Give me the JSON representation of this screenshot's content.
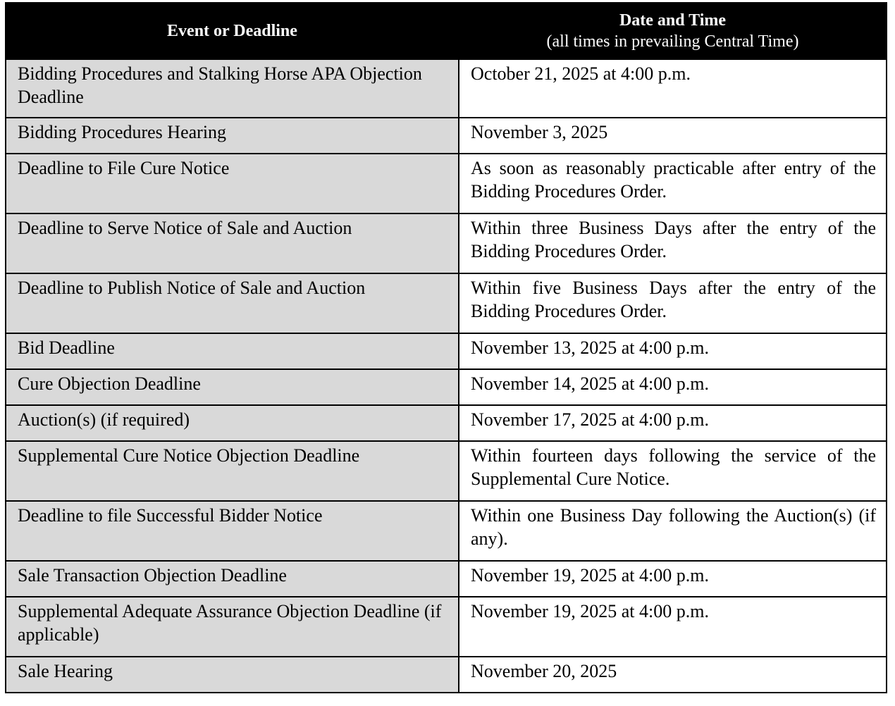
{
  "header": {
    "event": "Event or Deadline",
    "date": "Date and Time",
    "date_sub": "(all times in prevailing Central Time)"
  },
  "colors": {
    "header_bg": "#000000",
    "event_bg": "#d9d9d9"
  },
  "rows": [
    {
      "event": "Bidding Procedures and Stalking Horse APA Objection Deadline",
      "date": "October 21, 2025 at 4:00 p.m."
    },
    {
      "event": "Bidding Procedures Hearing",
      "date": "November 3, 2025"
    },
    {
      "event": "Deadline to File Cure Notice",
      "date": "As soon as reasonably practicable after entry of the Bidding Procedures Order."
    },
    {
      "event": "Deadline to Serve Notice of Sale and Auction",
      "date": "Within three Business Days after the entry of the Bidding Procedures Order."
    },
    {
      "event": "Deadline to Publish Notice of Sale and Auction",
      "date": "Within five Business Days after the entry of the Bidding Procedures Order."
    },
    {
      "event": "Bid Deadline",
      "date": "November 13, 2025 at 4:00 p.m."
    },
    {
      "event": "Cure Objection Deadline",
      "date": "November 14, 2025 at 4:00 p.m."
    },
    {
      "event": "Auction(s) (if required)",
      "date": "November 17, 2025 at 4:00 p.m."
    },
    {
      "event": "Supplemental Cure Notice Objection Deadline",
      "date": "Within fourteen days following the service of the Supplemental Cure Notice."
    },
    {
      "event": "Deadline to file Successful Bidder Notice",
      "date": "Within one Business Day following the Auction(s) (if any)."
    },
    {
      "event": "Sale Transaction Objection Deadline",
      "date": "November 19, 2025 at 4:00 p.m."
    },
    {
      "event": "Supplemental Adequate Assurance Objection Deadline (if applicable)",
      "date": "November 19, 2025 at 4:00 p.m."
    },
    {
      "event": "Sale Hearing",
      "date": "November 20, 2025"
    }
  ]
}
